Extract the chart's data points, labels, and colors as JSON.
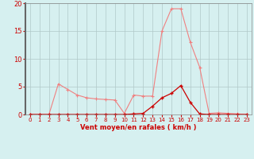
{
  "title": "",
  "xlabel": "Vent moyen/en rafales ( km/h )",
  "x_values": [
    0,
    1,
    2,
    3,
    4,
    5,
    6,
    7,
    8,
    9,
    10,
    11,
    12,
    13,
    14,
    15,
    16,
    17,
    18,
    19,
    20,
    21,
    22,
    23
  ],
  "line1_y": [
    0,
    0,
    0,
    5.5,
    4.5,
    3.5,
    3.0,
    2.8,
    2.7,
    2.6,
    0.2,
    3.5,
    3.3,
    3.3,
    15.0,
    19.0,
    19.0,
    13.0,
    8.5,
    0.2,
    0.3,
    0.2,
    0.1,
    0
  ],
  "line2_y": [
    0,
    0,
    0,
    0,
    0,
    0,
    0,
    0,
    0,
    0,
    0,
    0.1,
    0.2,
    1.5,
    3.0,
    3.8,
    5.2,
    2.2,
    0.1,
    0,
    0,
    0,
    0,
    0
  ],
  "line1_color": "#f08080",
  "line2_color": "#cc0000",
  "bg_color": "#d6f0f0",
  "grid_color": "#b0c8c8",
  "tick_color": "#cc0000",
  "label_color": "#cc0000",
  "ylim": [
    0,
    20
  ],
  "xlim": [
    -0.5,
    23.5
  ],
  "yticks": [
    0,
    5,
    10,
    15,
    20
  ],
  "xticks": [
    0,
    1,
    2,
    3,
    4,
    5,
    6,
    7,
    8,
    9,
    10,
    11,
    12,
    13,
    14,
    15,
    16,
    17,
    18,
    19,
    20,
    21,
    22,
    23
  ],
  "marker": "+"
}
